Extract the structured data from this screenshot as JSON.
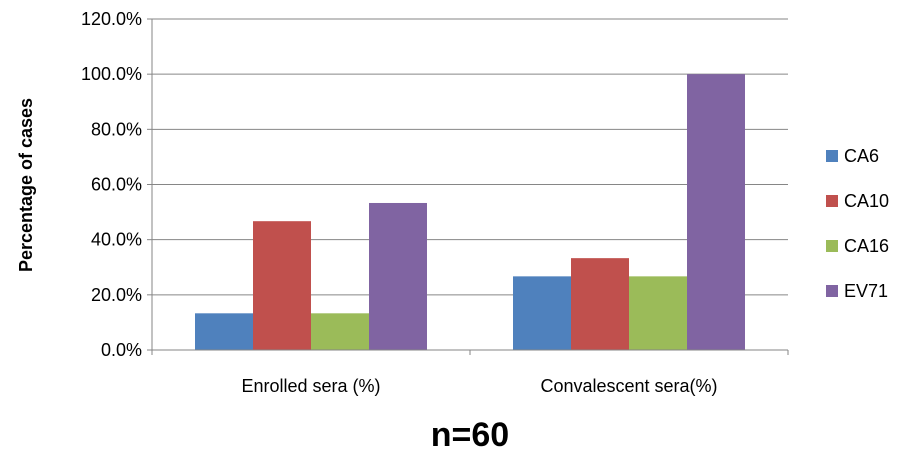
{
  "chart_data": {
    "type": "bar",
    "categories": [
      "Enrolled sera (%)",
      "Convalescent sera(%)"
    ],
    "series": [
      {
        "name": "CA6",
        "values": [
          13.3,
          26.7
        ],
        "color": "#4F81BD"
      },
      {
        "name": "CA10",
        "values": [
          46.7,
          33.3
        ],
        "color": "#C0504D"
      },
      {
        "name": "CA16",
        "values": [
          13.3,
          26.7
        ],
        "color": "#9BBB59"
      },
      {
        "name": "EV71",
        "values": [
          53.3,
          100.0
        ],
        "color": "#8064A2"
      }
    ],
    "ylabel": "Percentage of cases",
    "xlabel": "n=60",
    "ylim": [
      0,
      120
    ],
    "yticks": [
      "0.0%",
      "20.0%",
      "40.0%",
      "60.0%",
      "80.0%",
      "100.0%",
      "120.0%"
    ],
    "grid": true,
    "legend_position": "right"
  }
}
